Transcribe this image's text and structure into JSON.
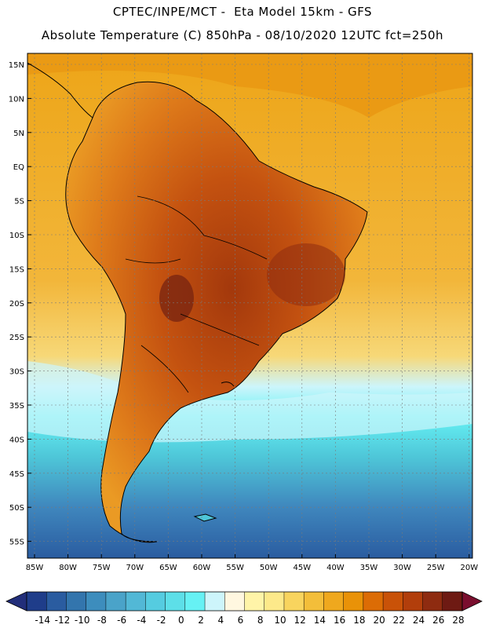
{
  "header": {
    "title_line1": "CPTEC/INPE/MCT -  Eta Model 15km - GFS",
    "title_line2": "Absolute Temperature (C) 850hPa - 08/10/2020 12UTC fct=250h"
  },
  "axes": {
    "lat_labels": [
      "15N",
      "10N",
      "5N",
      "EQ",
      "5S",
      "10S",
      "15S",
      "20S",
      "25S",
      "30S",
      "35S",
      "40S",
      "45S",
      "50S",
      "55S"
    ],
    "lon_labels": [
      "85W",
      "80W",
      "75W",
      "70W",
      "65W",
      "60W",
      "55W",
      "50W",
      "45W",
      "40W",
      "35W",
      "30W",
      "25W",
      "20W"
    ]
  },
  "colorbar": {
    "labels": [
      "-14",
      "-12",
      "-10",
      "-8",
      "-6",
      "-4",
      "-2",
      "0",
      "2",
      "4",
      "6",
      "8",
      "10",
      "12",
      "14",
      "16",
      "18",
      "20",
      "22",
      "24",
      "26",
      "28"
    ],
    "colors": [
      "#1f3d8a",
      "#2a5ca0",
      "#3375ad",
      "#3d8dbd",
      "#4aa3c9",
      "#52b8d6",
      "#55cce0",
      "#5ddfe8",
      "#66f1f4",
      "#cdf5fb",
      "#fff7e0",
      "#fff4a8",
      "#fde98a",
      "#f8d45e",
      "#f3be3a",
      "#efa81e",
      "#e99208",
      "#dc6c05",
      "#c95208",
      "#b23e0b",
      "#8e2b10",
      "#6e1a13"
    ],
    "low_arrow_color": "#222e7a",
    "high_arrow_color": "#7a0e2e"
  },
  "map": {
    "ocean_warm_color": "#f2b52e",
    "ocean_cool_color": "#4ec6d8",
    "ocean_cold_color": "#3f86bd",
    "land_hot_color": "#b2450c"
  }
}
